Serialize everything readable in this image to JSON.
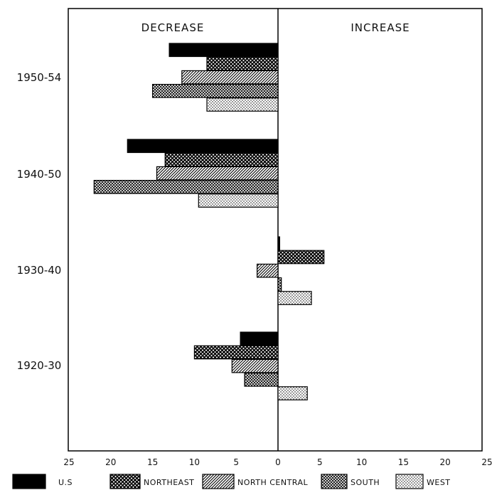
{
  "chart_data": {
    "type": "bar",
    "orientation": "horizontal-diverging",
    "title": "",
    "xlabel": "",
    "ylabel": "",
    "left_header": "DECREASE",
    "right_header": "INCREASE",
    "categories": [
      "1950-54",
      "1940-50",
      "1930-40",
      "1920-30"
    ],
    "xlim": [
      -25,
      25
    ],
    "x_tick_labels": [
      "25",
      "20",
      "15",
      "10",
      "5",
      "0",
      "5",
      "10",
      "15",
      "20",
      "25"
    ],
    "grid": false,
    "legend_position": "bottom",
    "series": [
      {
        "name": "U.S",
        "pattern": "solid-black",
        "values": [
          -13,
          -18,
          0.2,
          -4.5
        ]
      },
      {
        "name": "NORTHEAST",
        "pattern": "crosshatch",
        "values": [
          -8.5,
          -13.5,
          5.5,
          -10
        ]
      },
      {
        "name": "NORTH CENTRAL",
        "pattern": "diagonal-lines",
        "values": [
          -11.5,
          -14.5,
          -2.5,
          -5.5
        ]
      },
      {
        "name": "SOUTH",
        "pattern": "fine-crosshatch",
        "values": [
          -15,
          -22,
          0.4,
          -4
        ]
      },
      {
        "name": "WEST",
        "pattern": "dots",
        "values": [
          -8.5,
          -9.5,
          4,
          3.5
        ]
      }
    ]
  }
}
